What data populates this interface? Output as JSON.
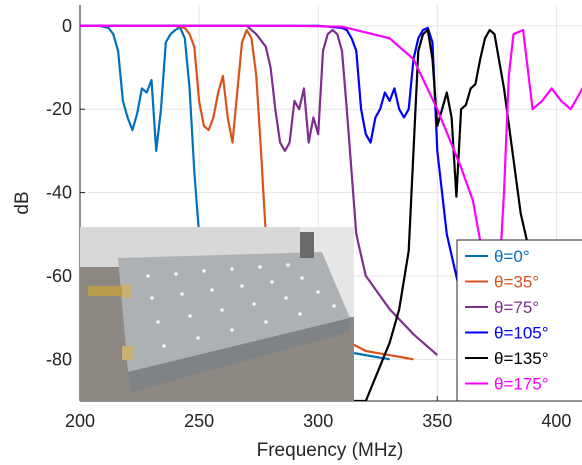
{
  "chart_data": {
    "type": "line",
    "title": "",
    "xlabel": "Frequency (MHz)",
    "ylabel": "dB",
    "xlim": [
      200,
      412
    ],
    "ylim": [
      -90,
      5
    ],
    "xticks": [
      "200",
      "250",
      "300",
      "350",
      "400"
    ],
    "yticks": [
      "0",
      "-20",
      "-40",
      "-60",
      "-80"
    ],
    "grid": true,
    "legend_position": "bottom-right",
    "inset_photo": "filter-box-photo",
    "series": [
      {
        "name": "θ=0°",
        "color": "#0072bd",
        "x": [
          200,
          208,
          212,
          214,
          216,
          218,
          220,
          222,
          224,
          226,
          228,
          230,
          232,
          234,
          236,
          238,
          240,
          242,
          244,
          246,
          248,
          250,
          260,
          270,
          290,
          310,
          330
        ],
        "y": [
          0,
          0,
          -0.5,
          -2,
          -6,
          -18,
          -22,
          -25,
          -21,
          -15,
          -16,
          -13,
          -30,
          -20,
          -4,
          -2,
          -1,
          -0.3,
          -3,
          -15,
          -35,
          -50,
          -60,
          -68,
          -75,
          -78,
          -80
        ]
      },
      {
        "name": "θ=35°",
        "color": "#d95319",
        "x": [
          200,
          230,
          240,
          244,
          246,
          248,
          250,
          252,
          254,
          256,
          258,
          260,
          262,
          264,
          266,
          268,
          270,
          272,
          274,
          276,
          278,
          280,
          290,
          300,
          320,
          340
        ],
        "y": [
          0,
          0,
          0,
          -0.5,
          -2,
          -5,
          -18,
          -24,
          -25,
          -22,
          -16,
          -12,
          -22,
          -28,
          -16,
          -4,
          -1,
          -3,
          -12,
          -30,
          -50,
          -60,
          -66,
          -72,
          -78,
          -80
        ]
      },
      {
        "name": "θ=75°",
        "color": "#7e2f8e",
        "x": [
          200,
          260,
          270,
          274,
          278,
          280,
          282,
          284,
          286,
          288,
          290,
          292,
          294,
          296,
          298,
          300,
          302,
          304,
          306,
          308,
          310,
          312,
          316,
          320,
          330,
          340,
          350
        ],
        "y": [
          0,
          0,
          0,
          -2,
          -5,
          -10,
          -20,
          -28,
          -30,
          -28,
          -18,
          -20,
          -15,
          -28,
          -22,
          -26,
          -6,
          -2,
          -1,
          -2,
          -6,
          -20,
          -50,
          -60,
          -68,
          -74,
          -79
        ]
      },
      {
        "name": "θ=105°",
        "color": "#0000ff",
        "x": [
          200,
          300,
          310,
          312,
          314,
          316,
          318,
          320,
          322,
          324,
          326,
          328,
          330,
          332,
          334,
          336,
          338,
          340,
          342,
          344,
          346,
          348,
          350,
          354,
          360,
          370,
          380
        ],
        "y": [
          0,
          0,
          -0.5,
          -1,
          -3,
          -6,
          -20,
          -26,
          -28,
          -22,
          -20,
          -16,
          -18,
          -15,
          -20,
          -22,
          -20,
          -8,
          -3,
          -1,
          -0.5,
          -4,
          -30,
          -50,
          -65,
          -74,
          -80
        ]
      },
      {
        "name": "θ=135°",
        "color": "#000000",
        "x": [
          200,
          320,
          330,
          334,
          338,
          340,
          342,
          344,
          346,
          348,
          350,
          352,
          354,
          356,
          358,
          360,
          362,
          364,
          366,
          368,
          370,
          372,
          374,
          378,
          385,
          395,
          410
        ],
        "y": [
          -90,
          -90,
          -76,
          -68,
          -54,
          -30,
          -6,
          -2,
          -1,
          -8,
          -24,
          -20,
          -16,
          -22,
          -41,
          -20,
          -19,
          -15,
          -14,
          -8,
          -3,
          -1,
          -2,
          -15,
          -45,
          -70,
          -80
        ]
      },
      {
        "name": "θ=175°",
        "color": "#ff00ff",
        "x": [
          200,
          230,
          260,
          290,
          310,
          330,
          340,
          350,
          360,
          365,
          370,
          372,
          374,
          376,
          378,
          380,
          382,
          386,
          390,
          394,
          398,
          402,
          406,
          410,
          412
        ],
        "y": [
          0,
          0,
          0,
          0,
          -0.2,
          -3,
          -8,
          -20,
          -34,
          -42,
          -58,
          -66,
          -68,
          -60,
          -40,
          -12,
          -2,
          -1,
          -20,
          -18,
          -15,
          -18,
          -20,
          -16,
          -14
        ]
      }
    ]
  }
}
